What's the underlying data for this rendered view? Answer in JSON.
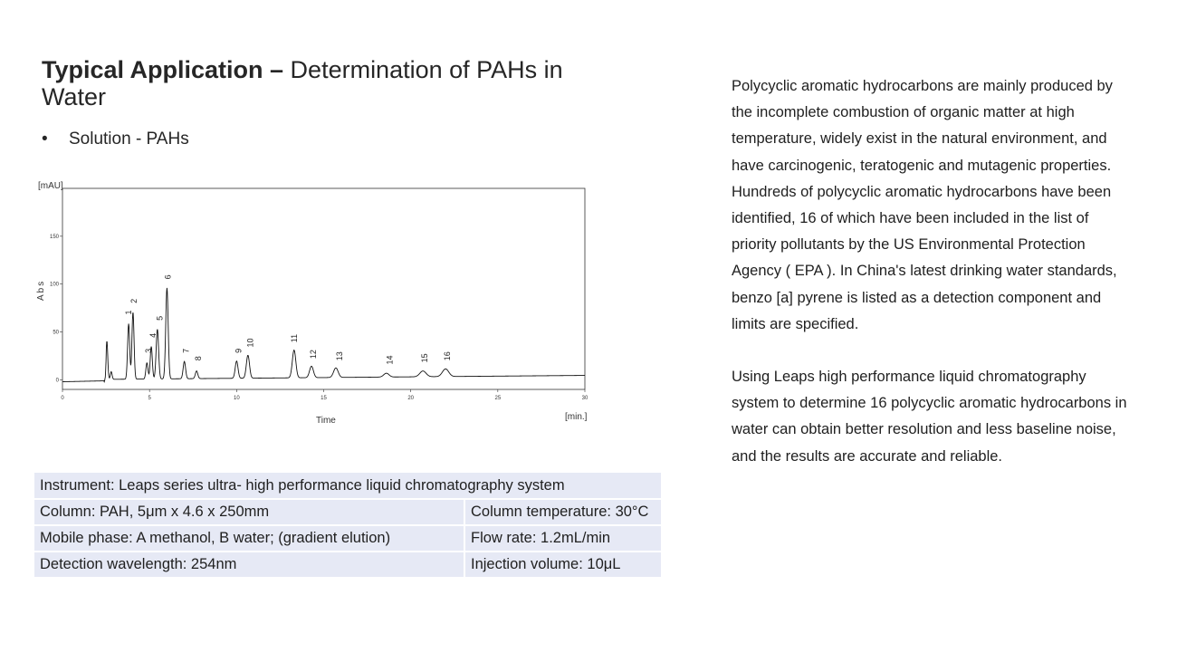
{
  "slide": {
    "title_bold": "Typical Application –",
    "title_rest": " Determination of PAHs in Water",
    "bullet_prefix": "Solution - ",
    "bullet_highlight": "PAHs",
    "bullet_symbol": "•"
  },
  "chart_data": {
    "type": "line",
    "ylabel": "Abs",
    "yunit": "[mAU]",
    "xlabel": "Time",
    "xunit": "[min.]",
    "xlim": [
      0,
      30
    ],
    "ylim": [
      -10,
      200
    ],
    "xticks": [
      "0",
      "5",
      "10",
      "15",
      "20",
      "25",
      "30"
    ],
    "yticks": [
      "0",
      "50",
      "100",
      "150"
    ],
    "grid": false,
    "series": [
      {
        "color": "#111111",
        "peaks": [
          {
            "t": 2.55,
            "h": 40,
            "w": 0.05
          },
          {
            "t": 2.8,
            "h": 8,
            "w": 0.05
          },
          {
            "t": 3.8,
            "h": 58,
            "w": 0.06
          },
          {
            "t": 4.05,
            "h": 70,
            "w": 0.06
          },
          {
            "t": 4.85,
            "h": 17,
            "w": 0.06
          },
          {
            "t": 5.1,
            "h": 34,
            "w": 0.06
          },
          {
            "t": 5.45,
            "h": 52,
            "w": 0.07
          },
          {
            "t": 6.0,
            "h": 95,
            "w": 0.07
          },
          {
            "t": 7.0,
            "h": 18,
            "w": 0.07
          },
          {
            "t": 7.7,
            "h": 8,
            "w": 0.07
          },
          {
            "t": 10.0,
            "h": 18,
            "w": 0.08
          },
          {
            "t": 10.65,
            "h": 24,
            "w": 0.09
          },
          {
            "t": 13.3,
            "h": 29,
            "w": 0.1
          },
          {
            "t": 14.3,
            "h": 12,
            "w": 0.11
          },
          {
            "t": 15.7,
            "h": 10,
            "w": 0.13
          },
          {
            "t": 18.6,
            "h": 4,
            "w": 0.15
          },
          {
            "t": 20.7,
            "h": 6,
            "w": 0.18
          },
          {
            "t": 22.0,
            "h": 8,
            "w": 0.18
          }
        ]
      }
    ],
    "peak_labels": [
      {
        "label": "1",
        "t": 3.8,
        "y": 68
      },
      {
        "label": "2",
        "t": 4.1,
        "y": 80
      },
      {
        "label": "3",
        "t": 4.95,
        "y": 28
      },
      {
        "label": "4",
        "t": 5.2,
        "y": 44
      },
      {
        "label": "5",
        "t": 5.6,
        "y": 62
      },
      {
        "label": "6",
        "t": 6.05,
        "y": 105
      },
      {
        "label": "7",
        "t": 7.1,
        "y": 28
      },
      {
        "label": "8",
        "t": 7.8,
        "y": 20
      },
      {
        "label": "9",
        "t": 10.1,
        "y": 28
      },
      {
        "label": "10",
        "t": 10.8,
        "y": 34
      },
      {
        "label": "11",
        "t": 13.3,
        "y": 39
      },
      {
        "label": "12",
        "t": 14.4,
        "y": 22
      },
      {
        "label": "13",
        "t": 15.9,
        "y": 20
      },
      {
        "label": "14",
        "t": 18.8,
        "y": 16
      },
      {
        "label": "15",
        "t": 20.8,
        "y": 18
      },
      {
        "label": "16",
        "t": 22.1,
        "y": 20
      }
    ]
  },
  "conditions": {
    "instrument": "Instrument: Leaps series ultra- high performance liquid chromatography system",
    "column": "Column: PAH, 5μm x 4.6 x 250mm",
    "column_temperature": "Column temperature: 30°C",
    "mobile_phase": "Mobile phase: A methanol, B water; (gradient elution)",
    "flow_rate": "Flow rate: 1.2mL/min",
    "wavelength": "Detection wavelength: 254nm",
    "injection_volume": "Injection volume: 10μL"
  },
  "description": {
    "paragraph1": "Polycyclic aromatic hydrocarbons are mainly produced by the incomplete combustion of organic matter at high temperature, widely exist in the natural environment, and have carcinogenic, teratogenic and mutagenic properties. Hundreds of polycyclic aromatic hydrocarbons have been identified, 16 of which have been included in the list of priority pollutants by the US Environmental Protection Agency ( EPA ). In China's latest drinking water standards, benzo [a] pyrene is listed as a detection component and limits are specified.",
    "paragraph2": "Using Leaps high performance liquid chromatography system to determine 16 polycyclic aromatic hydrocarbons in water can obtain better resolution and less baseline noise, and the results are accurate and reliable."
  }
}
